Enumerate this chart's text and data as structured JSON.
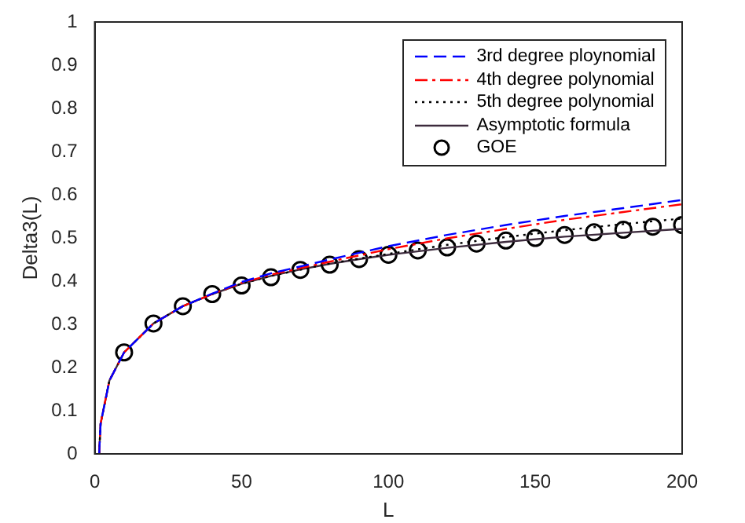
{
  "chart_data": {
    "type": "line",
    "xlabel": "L",
    "ylabel": "Delta3(L)",
    "xlim": [
      0,
      200
    ],
    "xticks": [
      0,
      50,
      100,
      150,
      200
    ],
    "ylim": [
      0,
      1
    ],
    "yticks": [
      0,
      0.1,
      0.2,
      0.3,
      0.4,
      0.5,
      0.6,
      0.7,
      0.8,
      0.9,
      1
    ],
    "grid": false,
    "legend": "top right",
    "series": [
      {
        "name": "3rd degree ploynomial",
        "color": "#0000ff",
        "line_style": "dashed",
        "marker": "none",
        "x": [
          1.5,
          2,
          5,
          10,
          20,
          30,
          40,
          50,
          60,
          80,
          100,
          120,
          140,
          160,
          180,
          200
        ],
        "values": [
          0,
          0.07,
          0.17,
          0.235,
          0.302,
          0.342,
          0.371,
          0.398,
          0.418,
          0.45,
          0.481,
          0.507,
          0.53,
          0.551,
          0.569,
          0.588
        ]
      },
      {
        "name": "4th degree polynomial",
        "color": "#ff0000",
        "line_style": "dashdot",
        "marker": "none",
        "x": [
          1.5,
          2,
          5,
          10,
          20,
          30,
          40,
          50,
          60,
          80,
          100,
          120,
          140,
          160,
          180,
          200
        ],
        "values": [
          0,
          0.07,
          0.17,
          0.235,
          0.302,
          0.342,
          0.37,
          0.396,
          0.415,
          0.445,
          0.474,
          0.499,
          0.521,
          0.542,
          0.56,
          0.578
        ]
      },
      {
        "name": "5th degree polynomial",
        "color": "#000000",
        "line_style": "dotted",
        "marker": "none",
        "x": [
          1.5,
          2,
          5,
          10,
          20,
          30,
          40,
          50,
          60,
          80,
          100,
          120,
          140,
          160,
          180,
          200
        ],
        "values": [
          0,
          0.07,
          0.17,
          0.235,
          0.302,
          0.342,
          0.37,
          0.394,
          0.412,
          0.441,
          0.463,
          0.484,
          0.502,
          0.518,
          0.532,
          0.545
        ]
      },
      {
        "name": "Asymptotic formula",
        "color": "#3d2b3d",
        "line_style": "solid",
        "marker": "none",
        "x": [
          1.5,
          2,
          5,
          10,
          20,
          30,
          40,
          50,
          60,
          70,
          80,
          90,
          100,
          120,
          140,
          160,
          180,
          200
        ],
        "values": [
          0,
          0.07,
          0.17,
          0.235,
          0.302,
          0.342,
          0.37,
          0.394,
          0.412,
          0.427,
          0.44,
          0.451,
          0.461,
          0.477,
          0.491,
          0.503,
          0.512,
          0.521
        ]
      },
      {
        "name": "GOE",
        "type": "scatter",
        "color": "#000000",
        "marker": "circle",
        "x": [
          10,
          20,
          30,
          40,
          50,
          60,
          70,
          80,
          90,
          100,
          110,
          120,
          130,
          140,
          150,
          160,
          170,
          180,
          190,
          200
        ],
        "values": [
          0.235,
          0.302,
          0.342,
          0.37,
          0.39,
          0.409,
          0.426,
          0.438,
          0.451,
          0.461,
          0.471,
          0.478,
          0.487,
          0.494,
          0.5,
          0.507,
          0.513,
          0.519,
          0.526,
          0.53
        ]
      }
    ]
  }
}
